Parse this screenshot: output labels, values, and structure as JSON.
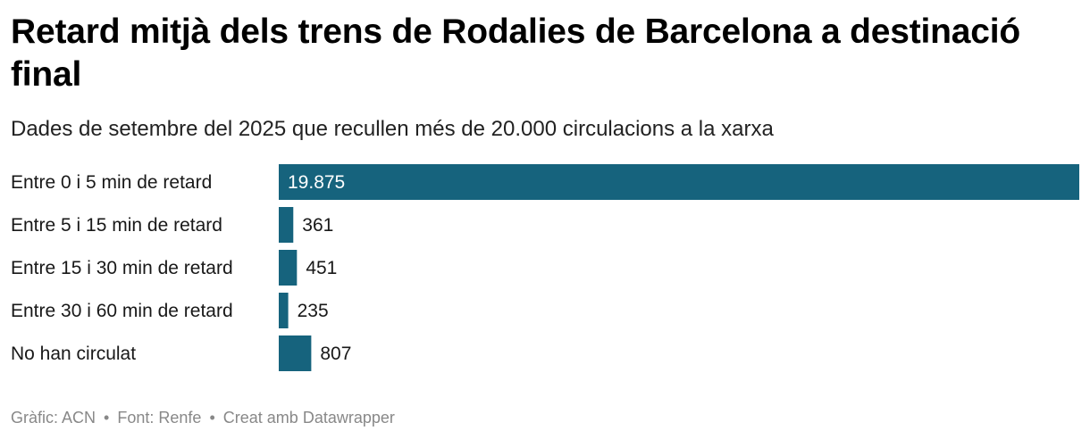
{
  "header": {
    "title": "Retard mitjà dels trens de Rodalies de Barcelona a destinació final",
    "subtitle": "Dades de setembre del 2025 que recullen més de 20.000 circulacions a la xarxa"
  },
  "footer": {
    "credit": "Gràfic: ACN",
    "source": "Font: Renfe",
    "tool": "Creat amb Datawrapper",
    "separator": "•"
  },
  "colors": {
    "bar": "#16637d",
    "label_inside": "#ffffff",
    "label_outside": "#181818"
  },
  "chart_data": {
    "type": "bar",
    "orientation": "horizontal",
    "categories": [
      "Entre 0 i 5 min de retard",
      "Entre 5 i 15 min de retard",
      "Entre 15 i 30 min de retard",
      "Entre 30 i 60 min de retard",
      "No han circulat"
    ],
    "values": [
      19875,
      361,
      451,
      235,
      807
    ],
    "value_labels": [
      "19.875",
      "361",
      "451",
      "235",
      "807"
    ],
    "xlim": [
      0,
      19875
    ],
    "grid": false,
    "legend": "none",
    "title": "",
    "xlabel": "",
    "ylabel": ""
  }
}
